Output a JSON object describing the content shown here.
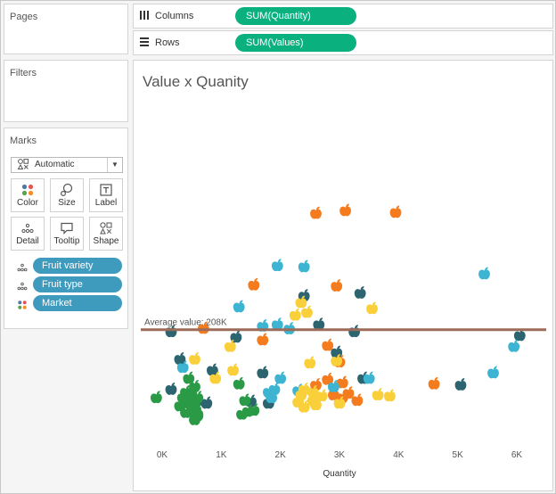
{
  "panels": {
    "pages_title": "Pages",
    "filters_title": "Filters",
    "marks_title": "Marks"
  },
  "shelves": {
    "columns": {
      "label": "Columns",
      "pill": "SUM(Quantity)",
      "icon": "columns-icon"
    },
    "rows": {
      "label": "Rows",
      "pill": "SUM(Values)",
      "icon": "rows-icon"
    }
  },
  "marks": {
    "mark_type": "Automatic",
    "buttons": {
      "color": "Color",
      "size": "Size",
      "label": "Label",
      "detail": "Detail",
      "tooltip": "Tooltip",
      "shape": "Shape"
    },
    "fields": [
      {
        "label": "Fruit variety",
        "icon": "detail-icon"
      },
      {
        "label": "Fruit type",
        "icon": "detail-icon"
      },
      {
        "label": "Market",
        "icon": "color-icon"
      }
    ]
  },
  "colors": {
    "pill_green": "#0bb07f",
    "pill_blue": "#3f9bbd",
    "reference_line": "#9c6b5a",
    "orange": "#f57c1e",
    "teal": "#2c6470",
    "cyan": "#3db5d2",
    "yellow": "#f9cf3a",
    "green": "#2a9a47"
  },
  "chart_data": {
    "type": "scatter",
    "title": "Value x Quanity",
    "xlabel": "Quantity",
    "ylabel": "",
    "x_ticks": [
      "0K",
      "1K",
      "2K",
      "3K",
      "4K",
      "5K",
      "6K"
    ],
    "xlim": [
      -300,
      6500
    ],
    "ylim": [
      0,
      600
    ],
    "reference_line": {
      "label": "Average value: 208K",
      "value": 208
    },
    "marker": "apple-shape",
    "series": [
      {
        "color": "#f57c1e",
        "points": [
          [
            2600,
            420
          ],
          [
            3100,
            425
          ],
          [
            3950,
            422
          ],
          [
            1550,
            290
          ],
          [
            2950,
            288
          ],
          [
            700,
            211
          ],
          [
            1700,
            190
          ],
          [
            2800,
            180
          ],
          [
            3000,
            150
          ],
          [
            2800,
            118
          ],
          [
            3050,
            112
          ],
          [
            2600,
            108
          ],
          [
            2900,
            90
          ],
          [
            3150,
            93
          ],
          [
            4600,
            110
          ],
          [
            3050,
            85
          ],
          [
            3300,
            80
          ]
        ]
      },
      {
        "color": "#2c6470",
        "points": [
          [
            3350,
            275
          ],
          [
            2400,
            270
          ],
          [
            3250,
            205
          ],
          [
            2650,
            218
          ],
          [
            150,
            205
          ],
          [
            1250,
            195
          ],
          [
            2950,
            167
          ],
          [
            300,
            155
          ],
          [
            850,
            135
          ],
          [
            1700,
            130
          ],
          [
            3400,
            120
          ],
          [
            5050,
            108
          ],
          [
            6050,
            198
          ],
          [
            150,
            100
          ],
          [
            600,
            80
          ],
          [
            750,
            75
          ],
          [
            1500,
            78
          ],
          [
            1800,
            75
          ]
        ]
      },
      {
        "color": "#3db5d2",
        "points": [
          [
            1950,
            325
          ],
          [
            2400,
            323
          ],
          [
            5450,
            310
          ],
          [
            1300,
            250
          ],
          [
            1950,
            218
          ],
          [
            1700,
            215
          ],
          [
            2150,
            210
          ],
          [
            5950,
            178
          ],
          [
            350,
            140
          ],
          [
            2000,
            120
          ],
          [
            3500,
            120
          ],
          [
            5600,
            130
          ],
          [
            1800,
            95
          ],
          [
            1900,
            100
          ],
          [
            1850,
            85
          ],
          [
            2900,
            105
          ],
          [
            2300,
            98
          ]
        ]
      },
      {
        "color": "#f9cf3a",
        "points": [
          [
            2350,
            258
          ],
          [
            2450,
            240
          ],
          [
            3550,
            247
          ],
          [
            2250,
            235
          ],
          [
            1150,
            178
          ],
          [
            550,
            155
          ],
          [
            2500,
            148
          ],
          [
            2950,
            152
          ],
          [
            1200,
            135
          ],
          [
            900,
            120
          ],
          [
            2400,
            100
          ],
          [
            2350,
            90
          ],
          [
            2550,
            95
          ],
          [
            2700,
            88
          ],
          [
            2550,
            80
          ],
          [
            3650,
            90
          ],
          [
            3850,
            88
          ],
          [
            2300,
            77
          ],
          [
            2600,
            72
          ],
          [
            2400,
            68
          ],
          [
            3000,
            75
          ]
        ]
      },
      {
        "color": "#2a9a47",
        "points": [
          [
            450,
            120
          ],
          [
            550,
            105
          ],
          [
            400,
            95
          ],
          [
            500,
            90
          ],
          [
            350,
            85
          ],
          [
            600,
            85
          ],
          [
            450,
            75
          ],
          [
            550,
            70
          ],
          [
            300,
            70
          ],
          [
            500,
            60
          ],
          [
            600,
            55
          ],
          [
            400,
            58
          ],
          [
            -100,
            85
          ],
          [
            1300,
            110
          ],
          [
            1400,
            80
          ],
          [
            1450,
            60
          ],
          [
            1550,
            62
          ],
          [
            1350,
            55
          ],
          [
            550,
            45
          ],
          [
            600,
            52
          ]
        ]
      }
    ]
  }
}
